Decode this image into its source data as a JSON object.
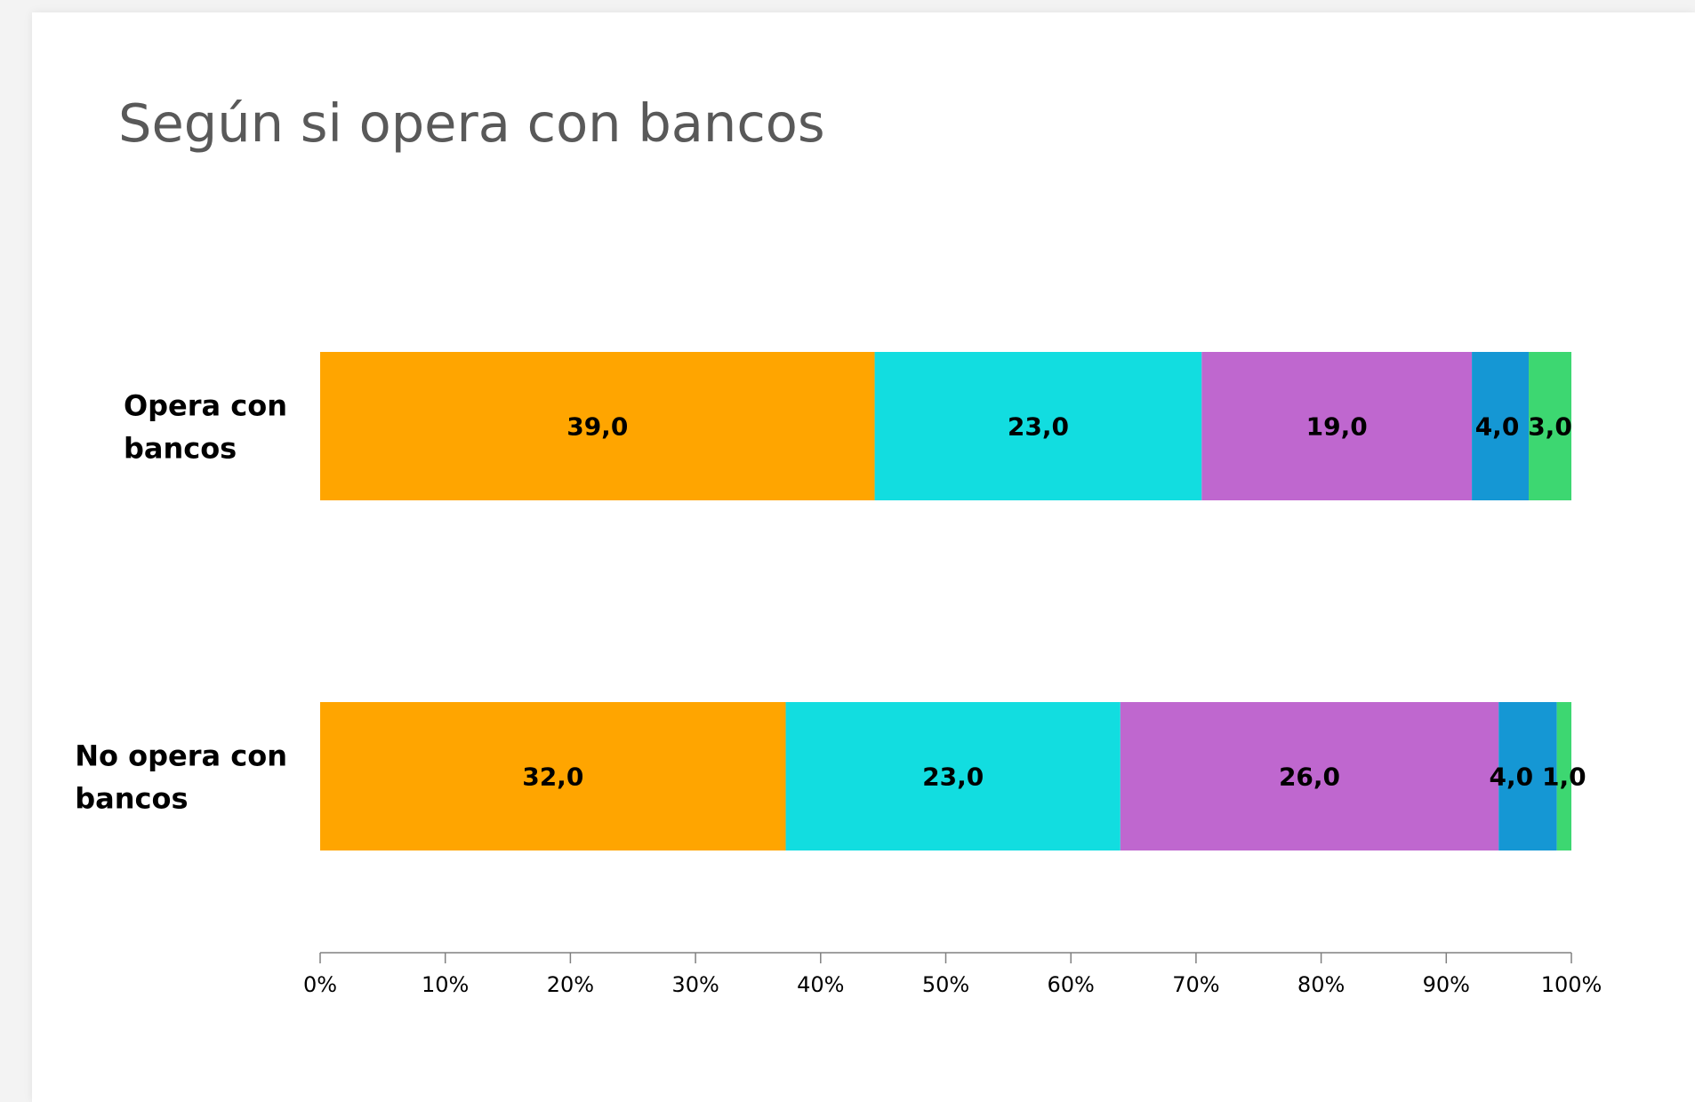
{
  "slide": {
    "title": "Según si opera con bancos"
  },
  "chart_data": {
    "type": "bar",
    "orientation": "horizontal",
    "stacked": true,
    "percent_stacked": true,
    "categories": [
      "Opera con bancos",
      "No opera con bancos"
    ],
    "series": [
      {
        "values": [
          39.0,
          32.0
        ],
        "labels": [
          "39,0",
          "32,0"
        ],
        "color": "#FFA500"
      },
      {
        "values": [
          23.0,
          23.0
        ],
        "labels": [
          "23,0",
          "23,0"
        ],
        "color": "#12DDE0"
      },
      {
        "values": [
          19.0,
          26.0
        ],
        "labels": [
          "19,0",
          "26,0"
        ],
        "color": "#BF67CF"
      },
      {
        "values": [
          4.0,
          4.0
        ],
        "labels": [
          "4,0",
          "4,0"
        ],
        "color": "#1597D4"
      },
      {
        "values": [
          3.0,
          1.0
        ],
        "labels": [
          "3,0",
          "1,0"
        ],
        "color": "#3DD771"
      }
    ],
    "xlim": [
      0,
      100
    ],
    "x_ticks": [
      "0%",
      "10%",
      "20%",
      "30%",
      "40%",
      "50%",
      "60%",
      "70%",
      "80%",
      "90%",
      "100%"
    ],
    "xlabel": "",
    "ylabel": "",
    "grid": false,
    "legend": "none"
  }
}
